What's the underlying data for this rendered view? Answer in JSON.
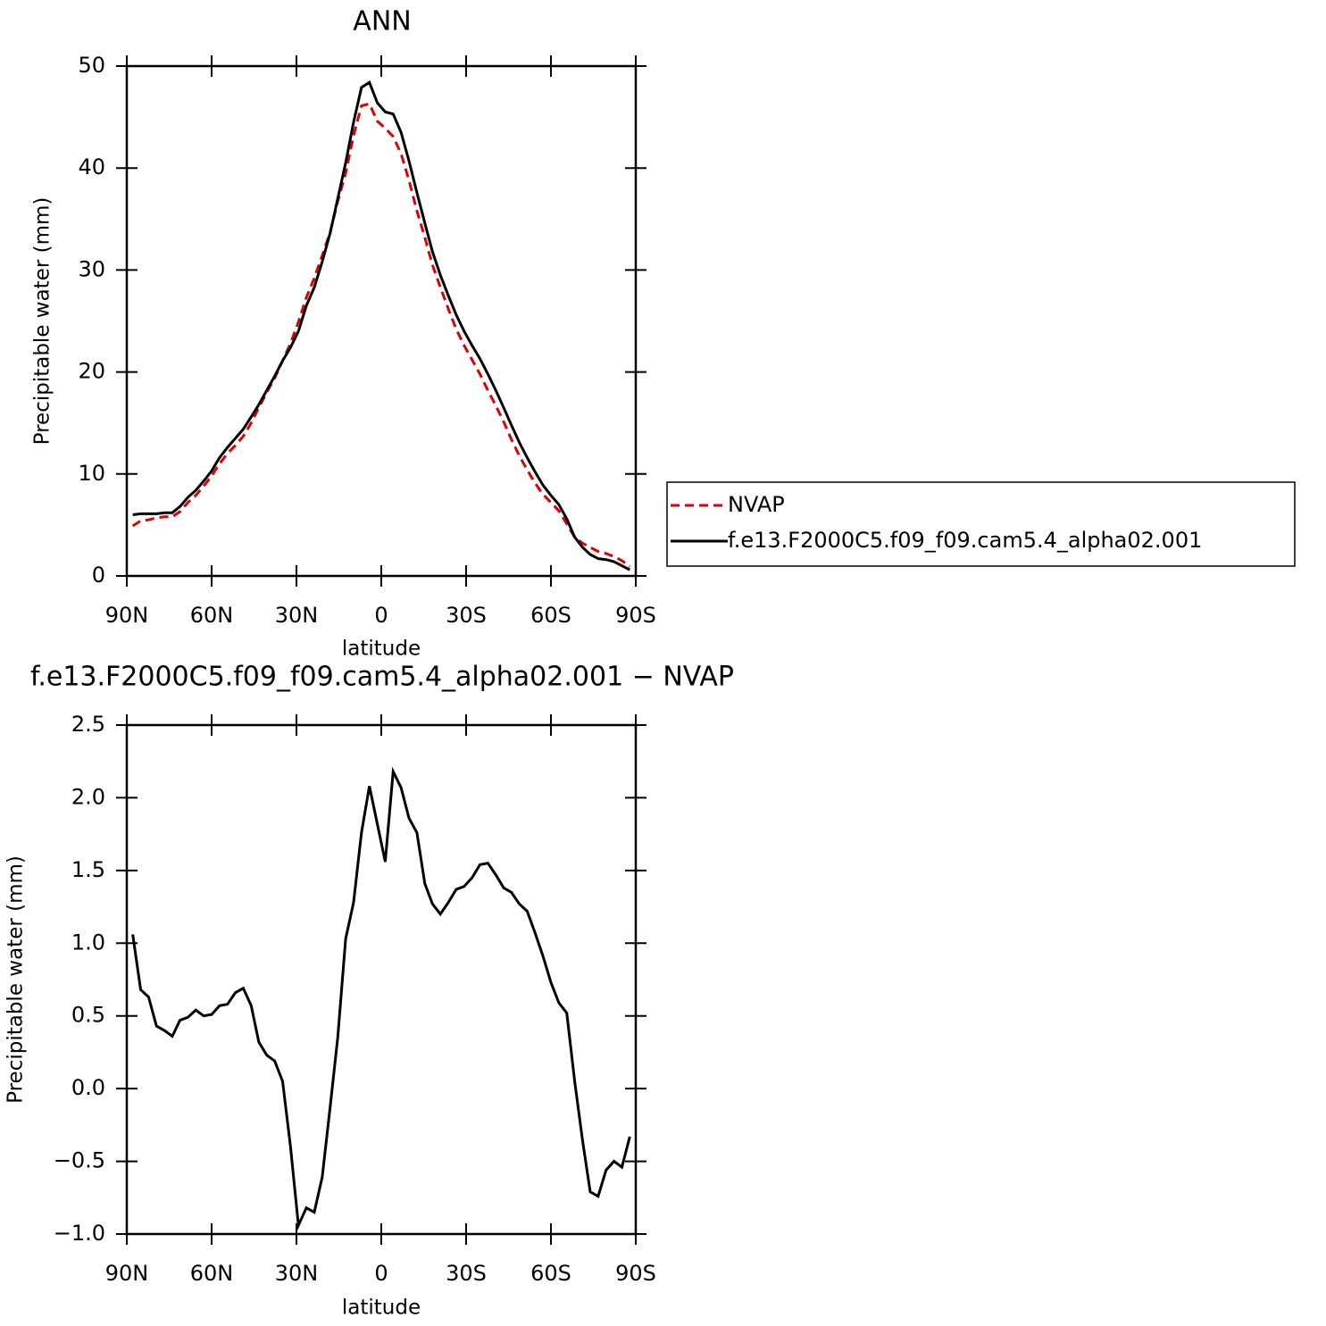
{
  "chart_data": [
    {
      "type": "line",
      "title": "ANN",
      "xlabel": "latitude",
      "ylabel": "Precipitable water (mm)",
      "x": [
        87.9,
        85.1,
        82.3,
        79.5,
        76.7,
        73.9,
        71.2,
        68.4,
        65.6,
        62.8,
        60.0,
        57.2,
        54.4,
        51.6,
        48.8,
        46.0,
        43.3,
        40.5,
        37.7,
        34.9,
        32.1,
        29.3,
        26.5,
        23.7,
        20.9,
        18.1,
        15.4,
        12.6,
        9.8,
        7.0,
        4.2,
        1.4,
        -1.4,
        -4.2,
        -7.0,
        -9.8,
        -12.6,
        -15.4,
        -18.1,
        -20.9,
        -23.7,
        -26.5,
        -29.3,
        -32.1,
        -34.9,
        -37.7,
        -40.5,
        -43.3,
        -46.0,
        -48.8,
        -51.6,
        -54.4,
        -57.2,
        -60.0,
        -62.8,
        -65.6,
        -68.4,
        -71.2,
        -73.9,
        -76.7,
        -79.5,
        -82.3,
        -85.1,
        -87.9
      ],
      "series": [
        {
          "name": "NVAP",
          "color": "#e00000",
          "line_style": "dashed",
          "values": [
            4.9,
            5.4,
            5.5,
            5.7,
            5.8,
            5.8,
            6.3,
            7.2,
            7.9,
            8.8,
            9.8,
            11.0,
            12.0,
            12.8,
            13.7,
            15.0,
            16.5,
            18.0,
            19.4,
            21.1,
            22.8,
            24.9,
            27.3,
            29.2,
            31.4,
            33.7,
            36.7,
            39.5,
            43.2,
            46.1,
            46.3,
            44.6,
            43.9,
            43.1,
            41.4,
            38.8,
            35.8,
            33.2,
            30.5,
            28.3,
            26.2,
            24.2,
            22.6,
            21.2,
            19.8,
            18.2,
            16.7,
            15.1,
            13.4,
            11.8,
            10.4,
            9.1,
            8.0,
            7.2,
            6.4,
            5.1,
            3.8,
            3.2,
            2.8,
            2.4,
            2.2,
            1.9,
            1.5,
            0.9
          ]
        },
        {
          "name": "f.e13.F2000C5.f09_f09.cam5.4_alpha02.001",
          "color": "#000000",
          "line_style": "solid",
          "values": [
            6.0,
            6.1,
            6.1,
            6.1,
            6.2,
            6.2,
            6.8,
            7.7,
            8.4,
            9.3,
            10.3,
            11.6,
            12.6,
            13.5,
            14.4,
            15.6,
            16.8,
            18.2,
            19.6,
            21.1,
            22.4,
            24.0,
            26.5,
            28.3,
            30.8,
            33.6,
            37.0,
            40.5,
            44.5,
            47.9,
            48.4,
            46.4,
            45.5,
            45.3,
            43.5,
            40.7,
            37.6,
            34.6,
            31.8,
            29.5,
            27.5,
            25.6,
            24.0,
            22.6,
            21.3,
            19.8,
            18.2,
            16.5,
            14.8,
            13.1,
            11.6,
            10.2,
            8.9,
            7.9,
            7.0,
            5.6,
            3.8,
            2.8,
            2.1,
            1.7,
            1.6,
            1.4,
            1.0,
            0.6
          ]
        }
      ],
      "xlim": [
        90,
        -90
      ],
      "xticks": [
        {
          "value": 90,
          "label": "90N"
        },
        {
          "value": 60,
          "label": "60N"
        },
        {
          "value": 30,
          "label": "30N"
        },
        0,
        {
          "value": -30,
          "label": "30S"
        },
        {
          "value": -60,
          "label": "60S"
        },
        {
          "value": -90,
          "label": "90S"
        }
      ],
      "ylim": [
        0,
        50
      ],
      "yticks": [
        0,
        10,
        20,
        30,
        40,
        50
      ],
      "grid": false,
      "legend": "right"
    },
    {
      "type": "line",
      "title": "f.e13.F2000C5.f09_f09.cam5.4_alpha02.001 − NVAP",
      "xlabel": "latitude",
      "ylabel": "Precipitable water (mm)",
      "x": [
        87.9,
        85.1,
        82.3,
        79.5,
        76.7,
        73.9,
        71.2,
        68.4,
        65.6,
        62.8,
        60.0,
        57.2,
        54.4,
        51.6,
        48.8,
        46.0,
        43.3,
        40.5,
        37.7,
        34.9,
        32.1,
        29.3,
        26.5,
        23.7,
        20.9,
        18.1,
        15.4,
        12.6,
        9.8,
        7.0,
        4.2,
        1.4,
        -1.4,
        -4.2,
        -7.0,
        -9.8,
        -12.6,
        -15.4,
        -18.1,
        -20.9,
        -23.7,
        -26.5,
        -29.3,
        -32.1,
        -34.9,
        -37.7,
        -40.5,
        -43.3,
        -46.0,
        -48.8,
        -51.6,
        -54.4,
        -57.2,
        -60.0,
        -62.8,
        -65.6,
        -68.4,
        -71.2,
        -73.9,
        -76.7,
        -79.5,
        -82.3,
        -85.1,
        -87.9
      ],
      "values": [
        1.06,
        0.68,
        0.63,
        0.43,
        0.4,
        0.36,
        0.47,
        0.49,
        0.54,
        0.5,
        0.51,
        0.57,
        0.58,
        0.66,
        0.69,
        0.57,
        0.32,
        0.23,
        0.19,
        0.05,
        -0.4,
        -0.94,
        -0.82,
        -0.85,
        -0.61,
        -0.13,
        0.35,
        1.03,
        1.28,
        1.76,
        2.08,
        1.82,
        1.56,
        2.18,
        2.07,
        1.86,
        1.76,
        1.41,
        1.27,
        1.2,
        1.28,
        1.37,
        1.39,
        1.45,
        1.54,
        1.55,
        1.47,
        1.38,
        1.35,
        1.27,
        1.22,
        1.07,
        0.91,
        0.73,
        0.59,
        0.52,
        0.05,
        -0.36,
        -0.71,
        -0.74,
        -0.56,
        -0.5,
        -0.54,
        -0.33
      ],
      "color": "#000000",
      "xlim": [
        90,
        -90
      ],
      "xticks": [
        {
          "value": 90,
          "label": "90N"
        },
        {
          "value": 60,
          "label": "60N"
        },
        {
          "value": 30,
          "label": "30N"
        },
        0,
        {
          "value": -30,
          "label": "30S"
        },
        {
          "value": -60,
          "label": "60S"
        },
        {
          "value": -90,
          "label": "90S"
        }
      ],
      "ylim": [
        -1.0,
        2.5
      ],
      "yticks": [
        {
          "value": -1.0,
          "label": "−1.0"
        },
        {
          "value": -0.5,
          "label": "−0.5"
        },
        {
          "value": 0,
          "label": "0.0"
        },
        0.5,
        {
          "value": 1.0,
          "label": "1.0"
        },
        1.5,
        {
          "value": 2.0,
          "label": "2.0"
        },
        2.5
      ],
      "grid": false
    }
  ]
}
